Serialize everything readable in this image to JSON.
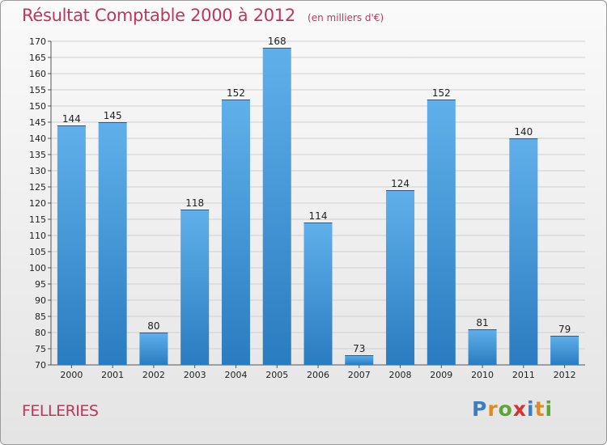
{
  "title": "Résultat Comptable 2000 à 2012",
  "unit": "(en milliers d'€)",
  "town": "FELLERIES",
  "logo_letters": [
    {
      "ch": "P",
      "color": "#3b7ec8"
    },
    {
      "ch": "r",
      "color": "#e28a1f"
    },
    {
      "ch": "o",
      "color": "#5aa832"
    },
    {
      "ch": "x",
      "color": "#d8322f"
    },
    {
      "ch": "i",
      "color": "#3b7ec8"
    },
    {
      "ch": "t",
      "color": "#e28a1f"
    },
    {
      "ch": "i",
      "color": "#5aa832"
    }
  ],
  "colors": {
    "bar_top": "#5fb0ea",
    "bar_bottom": "#2a7cc0",
    "title": "#c0365a"
  },
  "chart_data": {
    "type": "bar",
    "title": "Résultat Comptable 2000 à 2012",
    "xlabel": "",
    "ylabel": "",
    "categories": [
      "2000",
      "2001",
      "2002",
      "2003",
      "2004",
      "2005",
      "2006",
      "2007",
      "2008",
      "2009",
      "2010",
      "2011",
      "2012"
    ],
    "values": [
      144,
      145,
      80,
      118,
      152,
      168,
      114,
      73,
      124,
      152,
      81,
      140,
      79
    ],
    "ylim": [
      70,
      170
    ],
    "yticks": [
      70,
      75,
      80,
      85,
      90,
      95,
      100,
      105,
      110,
      115,
      120,
      125,
      130,
      135,
      140,
      145,
      150,
      155,
      160,
      165,
      170
    ],
    "grid": true
  }
}
